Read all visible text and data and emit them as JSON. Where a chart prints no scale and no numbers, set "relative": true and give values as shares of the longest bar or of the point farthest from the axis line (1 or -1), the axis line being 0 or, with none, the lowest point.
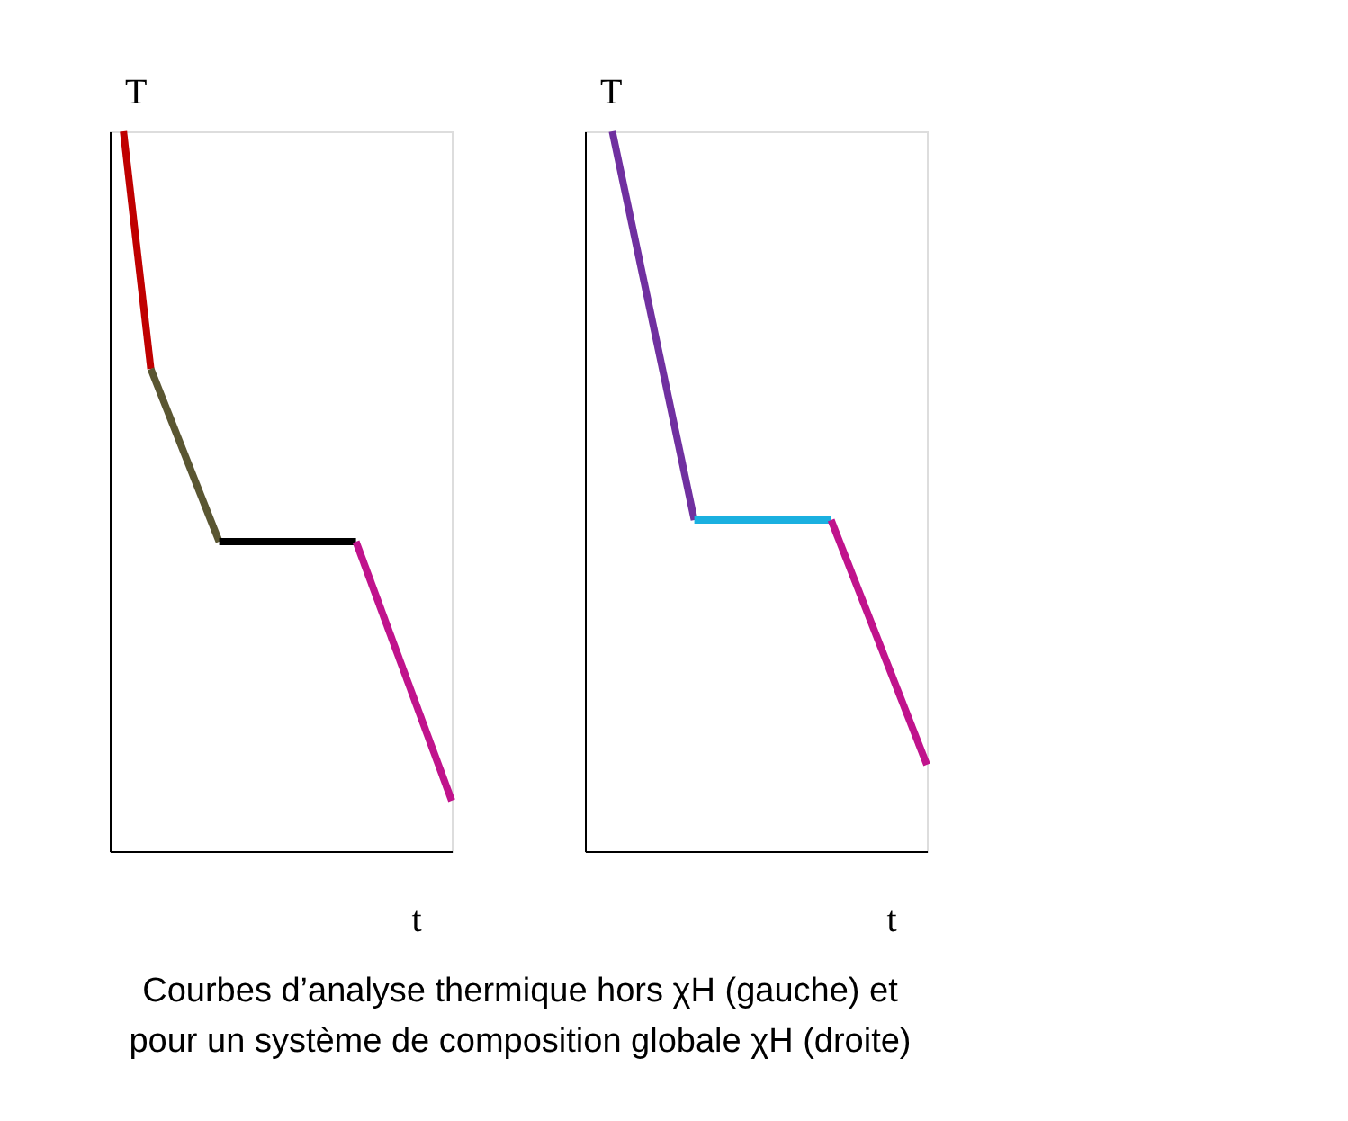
{
  "chart_data": [
    {
      "type": "line",
      "relative": true,
      "ylabel": "T",
      "xlabel": "t",
      "line_style": "solid",
      "marker": "none",
      "grid": false,
      "legend": false,
      "annotations": [
        "Courbes d’analyse thermique hors χH (gauche) et",
        "pour un système de composition globale χH (droite)"
      ],
      "categories": [
        null,
        null,
        null,
        null,
        null,
        null,
        null,
        null,
        null,
        null,
        null,
        null,
        null,
        null,
        null,
        null,
        null,
        null,
        null,
        null,
        null,
        null,
        null,
        null,
        null,
        null
      ],
      "series": [
        {
          "color": "#c00000",
          "values": [
            null,
            1.0,
            null,
            0.67,
            null,
            null,
            null,
            null,
            null,
            null,
            null,
            null,
            null,
            null,
            null,
            null,
            null,
            null,
            null,
            null,
            null,
            null,
            null,
            null,
            null,
            null
          ]
        },
        {
          "color": "#5a5632",
          "values": [
            null,
            null,
            null,
            0.67,
            null,
            null,
            null,
            null,
            0.43,
            null,
            null,
            null,
            null,
            null,
            null,
            null,
            null,
            null,
            null,
            null,
            null,
            null,
            null,
            null,
            null,
            null
          ]
        },
        {
          "color": "#000000",
          "values": [
            null,
            null,
            null,
            null,
            null,
            null,
            null,
            null,
            0.43,
            null,
            null,
            null,
            null,
            null,
            null,
            null,
            null,
            null,
            0.43,
            null,
            null,
            null,
            null,
            null,
            null,
            null
          ]
        },
        {
          "color": "#c0138c",
          "values": [
            null,
            null,
            null,
            null,
            null,
            null,
            null,
            null,
            null,
            null,
            null,
            null,
            null,
            null,
            null,
            null,
            null,
            null,
            0.43,
            null,
            null,
            null,
            null,
            null,
            null,
            0.07
          ]
        }
      ]
    },
    {
      "type": "line",
      "relative": true,
      "ylabel": "T",
      "xlabel": "t",
      "line_style": "solid",
      "marker": "none",
      "grid": false,
      "legend": false,
      "categories": [
        null,
        null,
        null,
        null,
        null,
        null,
        null,
        null,
        null,
        null,
        null,
        null,
        null,
        null,
        null,
        null,
        null,
        null,
        null,
        null,
        null,
        null,
        null,
        null,
        null,
        null
      ],
      "series": [
        {
          "color": "#7030a0",
          "values": [
            null,
            null,
            1.0,
            null,
            null,
            null,
            null,
            null,
            0.46,
            null,
            null,
            null,
            null,
            null,
            null,
            null,
            null,
            null,
            null,
            null,
            null,
            null,
            null,
            null,
            null,
            null
          ]
        },
        {
          "color": "#1ab0e0",
          "values": [
            null,
            null,
            null,
            null,
            null,
            null,
            null,
            null,
            0.46,
            null,
            null,
            null,
            null,
            null,
            null,
            null,
            null,
            null,
            0.46,
            null,
            null,
            null,
            null,
            null,
            null,
            null
          ]
        },
        {
          "color": "#c0138c",
          "values": [
            null,
            null,
            null,
            null,
            null,
            null,
            null,
            null,
            null,
            null,
            null,
            null,
            null,
            null,
            null,
            null,
            null,
            null,
            0.46,
            null,
            null,
            null,
            null,
            null,
            null,
            0.12
          ]
        }
      ]
    }
  ]
}
